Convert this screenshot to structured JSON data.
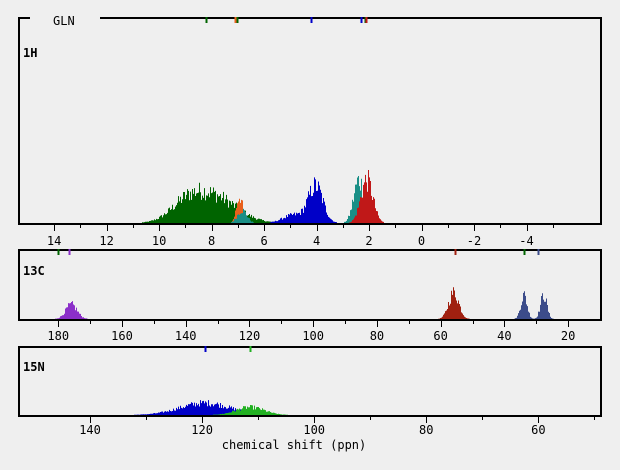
{
  "title": "GLN",
  "xlabel": "chemical shift (ppn)",
  "colors": {
    "dkgreen": "#006400",
    "orange": "#e8601c",
    "teal": "#1a8f86",
    "red": "#c01818",
    "blue": "#0000c8",
    "purple": "#8b2fc9",
    "brick": "#a02010",
    "slate": "#3c4c8a",
    "green": "#22b022"
  },
  "chart_data": [
    {
      "type": "area",
      "panel_label": "1H",
      "xlim": [
        15.3,
        -6.8
      ],
      "ticks": [
        14,
        12,
        10,
        8,
        6,
        4,
        2,
        0,
        -2,
        -4
      ],
      "tick_labels": [
        "14",
        "12",
        "10",
        "8",
        "6",
        "4",
        "2",
        "0",
        "-2",
        "-4"
      ],
      "markers": [
        {
          "x": 8.2,
          "color": "dkgreen"
        },
        {
          "x": 7.1,
          "color": "orange"
        },
        {
          "x": 7.05,
          "color": "dkgreen"
        },
        {
          "x": 4.2,
          "color": "blue"
        },
        {
          "x": 2.3,
          "color": "blue"
        },
        {
          "x": 2.15,
          "color": "dkgreen"
        },
        {
          "x": 2.1,
          "color": "red"
        }
      ],
      "series": [
        {
          "color": "dkgreen",
          "peaks": [
            {
              "center": 8.0,
              "height": 0.17,
              "width": 0.9
            },
            {
              "center": 9.0,
              "height": 0.08,
              "width": 0.6
            }
          ]
        },
        {
          "color": "orange",
          "peaks": [
            {
              "center": 6.95,
              "height": 0.17,
              "width": 0.12
            }
          ]
        },
        {
          "color": "teal",
          "peaks": [
            {
              "center": 6.85,
              "height": 0.08,
              "width": 0.18
            },
            {
              "center": 2.4,
              "height": 0.27,
              "width": 0.2
            }
          ]
        },
        {
          "color": "blue",
          "peaks": [
            {
              "center": 4.05,
              "height": 0.23,
              "width": 0.28
            },
            {
              "center": 4.9,
              "height": 0.05,
              "width": 0.4
            }
          ]
        },
        {
          "color": "red",
          "peaks": [
            {
              "center": 2.1,
              "height": 0.27,
              "width": 0.23
            }
          ]
        }
      ]
    },
    {
      "type": "area",
      "panel_label": "13C",
      "xlim": [
        192,
        10
      ],
      "ticks": [
        180,
        160,
        140,
        120,
        100,
        80,
        60,
        40,
        20
      ],
      "tick_labels": [
        "180",
        "160",
        "140",
        "120",
        "100",
        "80",
        "60",
        "40",
        "20"
      ],
      "markers": [
        {
          "x": 180,
          "color": "dkgreen"
        },
        {
          "x": 176.5,
          "color": "purple"
        },
        {
          "x": 55.5,
          "color": "brick"
        },
        {
          "x": 34,
          "color": "dkgreen"
        },
        {
          "x": 29.5,
          "color": "slate"
        }
      ],
      "series": [
        {
          "color": "purple",
          "peaks": [
            {
              "center": 176,
              "height": 0.27,
              "width": 1.8
            }
          ]
        },
        {
          "color": "brick",
          "peaks": [
            {
              "center": 56,
              "height": 0.5,
              "width": 1.6
            }
          ]
        },
        {
          "color": "slate",
          "peaks": [
            {
              "center": 34,
              "height": 0.45,
              "width": 1.0
            },
            {
              "center": 27.8,
              "height": 0.45,
              "width": 1.0
            }
          ]
        }
      ]
    },
    {
      "type": "area",
      "panel_label": "15N",
      "xlim": [
        152.5,
        49
      ],
      "ticks": [
        140,
        120,
        100,
        80,
        60
      ],
      "tick_labels": [
        "140",
        "120",
        "100",
        "80",
        "60"
      ],
      "markers": [
        {
          "x": 119.5,
          "color": "blue"
        },
        {
          "x": 111.5,
          "color": "green"
        }
      ],
      "series": [
        {
          "color": "blue",
          "peaks": [
            {
              "center": 119.5,
              "height": 0.23,
              "width": 4.5
            }
          ]
        },
        {
          "color": "green",
          "peaks": [
            {
              "center": 111.5,
              "height": 0.15,
              "width": 2.5
            }
          ]
        }
      ]
    }
  ]
}
